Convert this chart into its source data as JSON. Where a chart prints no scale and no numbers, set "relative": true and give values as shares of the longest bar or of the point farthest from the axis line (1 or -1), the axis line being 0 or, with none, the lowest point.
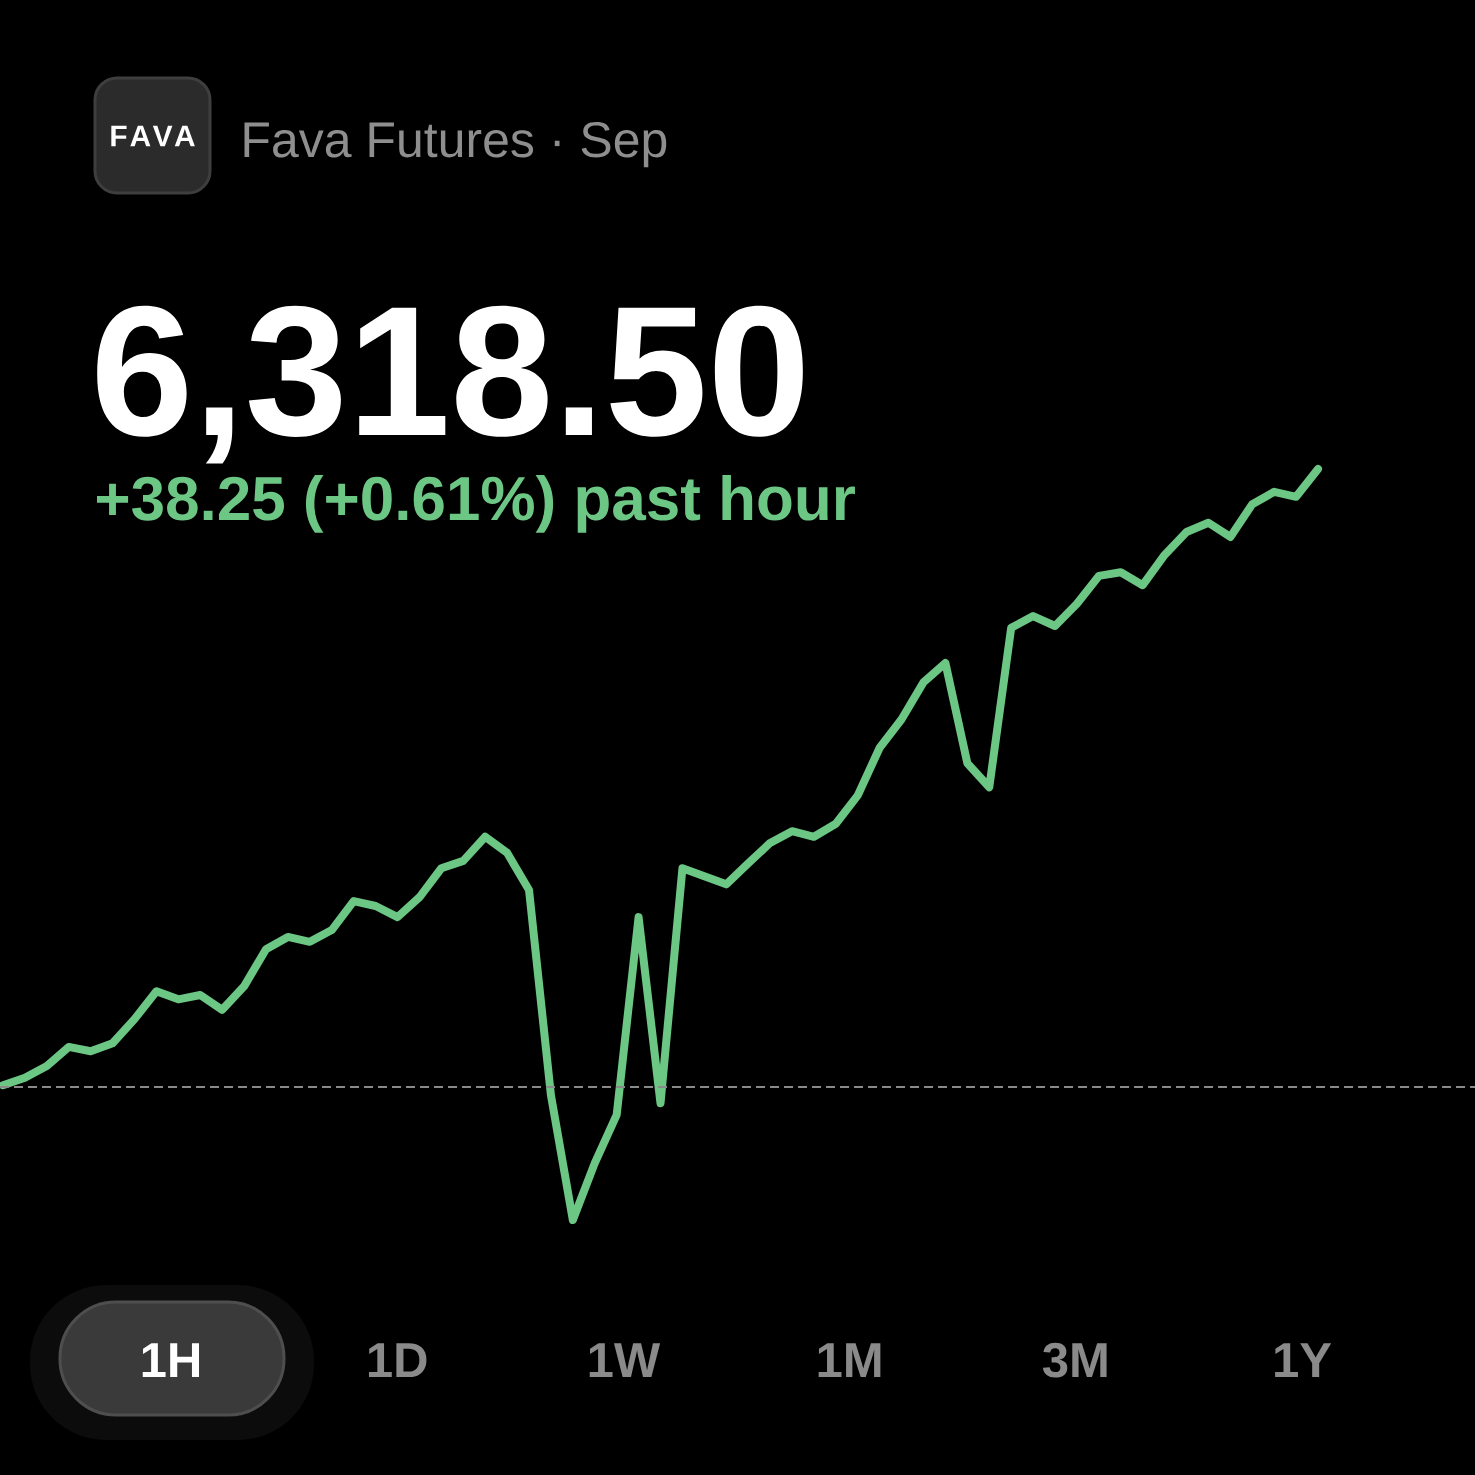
{
  "chart_data": {
    "type": "line",
    "title": "Fava Futures · Sep",
    "subtitle": "6,318.50",
    "annotations": [
      "+38.25 (+0.61%) past hour",
      "FAVA",
      "1H",
      "1D",
      "1W",
      "1M",
      "3M",
      "1Y"
    ],
    "relative": true,
    "categories": [
      null,
      null,
      null,
      null,
      null,
      null,
      null,
      null,
      null,
      null,
      null,
      null,
      null,
      null,
      null,
      null,
      null,
      null,
      null,
      null,
      null,
      null,
      null,
      null,
      null,
      null,
      null,
      null,
      null,
      null,
      null,
      null,
      null,
      null,
      null,
      null,
      null,
      null,
      null,
      null,
      null,
      null,
      null,
      null,
      null,
      null,
      null,
      null,
      null,
      null,
      null,
      null,
      null,
      null,
      null,
      null,
      null,
      null,
      null,
      null,
      null
    ],
    "series": [
      {
        "color": "#6cc785",
        "values": [
          0.003,
          0.015,
          0.034,
          0.065,
          0.058,
          0.071,
          0.11,
          0.155,
          0.142,
          0.149,
          0.125,
          0.163,
          0.223,
          0.243,
          0.235,
          0.254,
          0.301,
          0.293,
          0.275,
          0.307,
          0.354,
          0.366,
          0.405,
          0.379,
          0.319,
          -0.013,
          -0.215,
          -0.123,
          -0.045,
          0.275,
          -0.026,
          0.354,
          0.341,
          0.328,
          0.362,
          0.395,
          0.414,
          0.405,
          0.426,
          0.472,
          0.549,
          0.595,
          0.655,
          0.686,
          0.524,
          0.485,
          0.743,
          0.762,
          0.746,
          0.782,
          0.827,
          0.833,
          0.812,
          0.861,
          0.898,
          0.913,
          0.89,
          0.943,
          0.963,
          0.955,
          1
        ]
      }
    ],
    "ref_lines": [
      {
        "axis": "y",
        "value": 0,
        "color": "#8a8a8a",
        "line_style": "dashed"
      }
    ]
  }
}
